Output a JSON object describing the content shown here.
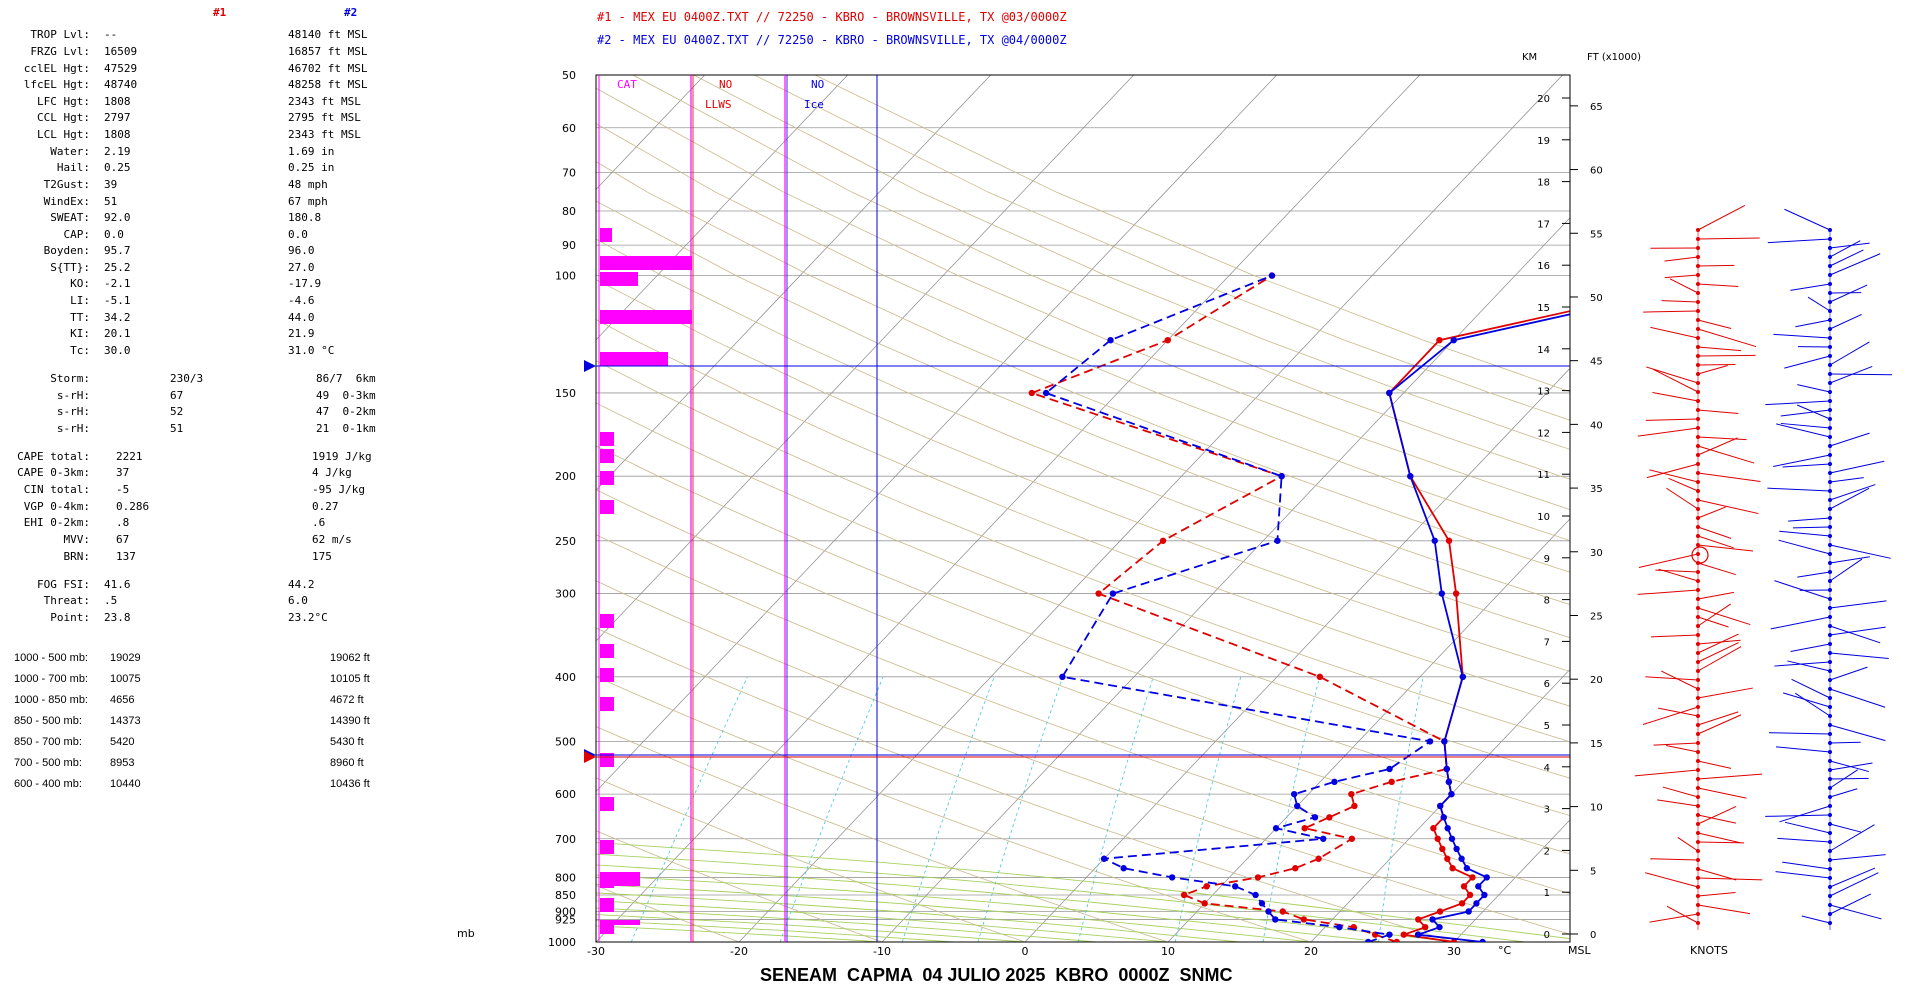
{
  "header": {
    "col1_label": "#1",
    "col2_label": "#2",
    "run1": "#1 - MEX EU 0400Z.TXT // 72250 - KBRO - BROWNSVILLE, TX   @03/0000Z",
    "run2": "#2 - MEX EU 0400Z.TXT // 72250 - KBRO - BROWNSVILLE, TX   @04/0000Z"
  },
  "params": [
    {
      "label": "TROP Lvl:",
      "v1": "--",
      "v2": "48140 ft MSL",
      "y": 38
    },
    {
      "label": "FRZG Lvl:",
      "v1": "16509",
      "v2": "16857 ft MSL",
      "y": 55
    },
    {
      "label": "cclEL Hgt:",
      "v1": "47529",
      "v2": "46702 ft MSL",
      "y": 72
    },
    {
      "label": "lfcEL Hgt:",
      "v1": "48740",
      "v2": "48258 ft MSL",
      "y": 88
    },
    {
      "label": "LFC Hgt:",
      "v1": "1808",
      "v2": "2343 ft MSL",
      "y": 105
    },
    {
      "label": "CCL Hgt:",
      "v1": "2797",
      "v2": "2795 ft MSL",
      "y": 121
    },
    {
      "label": "LCL Hgt:",
      "v1": "1808",
      "v2": "2343 ft MSL",
      "y": 138
    },
    {
      "label": "Water:",
      "v1": "2.19",
      "v2": "1.69 in",
      "y": 155
    },
    {
      "label": "Hail:",
      "v1": "0.25",
      "v2": "0.25 in",
      "y": 171
    },
    {
      "label": "T2Gust:",
      "v1": "39",
      "v2": "48 mph",
      "y": 188
    },
    {
      "label": "WindEx:",
      "v1": "51",
      "v2": "67 mph",
      "y": 205
    },
    {
      "label": "SWEAT:",
      "v1": "92.0",
      "v2": "180.8",
      "y": 221
    },
    {
      "label": "CAP:",
      "v1": "0.0",
      "v2": "0.0",
      "y": 238
    },
    {
      "label": "Boyden:",
      "v1": "95.7",
      "v2": "96.0",
      "y": 254
    },
    {
      "label": "S{TT}:",
      "v1": "25.2",
      "v2": "27.0",
      "y": 271
    },
    {
      "label": "KO:",
      "v1": "-2.1",
      "v2": "-17.9",
      "y": 287
    },
    {
      "label": "LI:",
      "v1": "-5.1",
      "v2": "-4.6",
      "y": 304
    },
    {
      "label": "TT:",
      "v1": "34.2",
      "v2": "44.0",
      "y": 321
    },
    {
      "label": "KI:",
      "v1": "20.1",
      "v2": "21.9",
      "y": 337
    },
    {
      "label": "Tc:",
      "v1": "30.0",
      "v2": "31.0 °C",
      "y": 354
    }
  ],
  "storm": [
    {
      "label": "Storm:",
      "v1": "230/3",
      "v2": "86/7  6km",
      "y": 382
    },
    {
      "label": "s-rH:",
      "v1": "67",
      "v2": "49  0-3km",
      "y": 399
    },
    {
      "label": "s-rH:",
      "v1": "52",
      "v2": "47  0-2km",
      "y": 415
    },
    {
      "label": "s-rH:",
      "v1": "51",
      "v2": "21  0-1km",
      "y": 432
    }
  ],
  "cape": [
    {
      "label": "CAPE total:",
      "v1": "2221",
      "v2": "1919 J/kg",
      "y": 460
    },
    {
      "label": "CAPE 0-3km:",
      "v1": "37",
      "v2": "4 J/kg",
      "y": 476
    },
    {
      "label": "CIN total:",
      "v1": "-5",
      "v2": "-95 J/kg",
      "y": 493
    },
    {
      "label": "VGP 0-4km:",
      "v1": "0.286",
      "v2": "0.27",
      "y": 510
    },
    {
      "label": "EHI 0-2km:",
      "v1": ".8",
      "v2": ".6",
      "y": 526
    },
    {
      "label": "MVV:",
      "v1": "67",
      "v2": "62 m/s",
      "y": 543
    },
    {
      "label": "BRN:",
      "v1": "137",
      "v2": "175",
      "y": 560
    }
  ],
  "fog": [
    {
      "label": "FOG FSI:",
      "v1": "41.6",
      "v2": "44.2",
      "y": 588
    },
    {
      "label": "Threat:",
      "v1": ".5",
      "v2": "6.0",
      "y": 604
    },
    {
      "label": "Point:",
      "v1": "23.8",
      "v2": "23.2°C",
      "y": 621
    }
  ],
  "thickness": [
    {
      "label": "1000 - 500 mb:",
      "v1": "19029",
      "v2": "19062 ft",
      "y": 662
    },
    {
      "label": "1000 - 700 mb:",
      "v1": "10075",
      "v2": "10105 ft",
      "y": 683
    },
    {
      "label": "1000 - 850 mb:",
      "v1": "4656",
      "v2": "4672 ft",
      "y": 704
    },
    {
      "label": "850 - 500 mb:",
      "v1": "14373",
      "v2": "14390 ft",
      "y": 725
    },
    {
      "label": "850 - 700 mb:",
      "v1": "5420",
      "v2": "5430 ft",
      "y": 746
    },
    {
      "label": "700 - 500 mb:",
      "v1": "8953",
      "v2": "8960 ft",
      "y": 767
    },
    {
      "label": "600 - 400 mb:",
      "v1": "10440",
      "v2": "10436 ft",
      "y": 788
    }
  ],
  "chart_labels": {
    "cat": "CAT",
    "no_red": "NO",
    "llws": "LLWS",
    "no_blue": "NO",
    "ice": "Ice",
    "km": "KM",
    "ft": "FT (x1000)",
    "mb": "mb",
    "degc": "°C",
    "msl": "MSL",
    "knots": "KNOTS"
  },
  "footer": "SENEAM  CAPMA  04 JULIO 2025  KBRO  0000Z  SNMC",
  "colors": {
    "run1": "#e00000",
    "run2": "#0000e0",
    "cat": "#ff00ff"
  },
  "chart_data": {
    "type": "line",
    "title": "",
    "xlabel": "°C",
    "ylabel": "mb",
    "xlim": [
      -30,
      40
    ],
    "ylim": [
      1000,
      50
    ],
    "x_ticks": [
      -30,
      -20,
      -10,
      0,
      10,
      20,
      30
    ],
    "pressure_ticks": [
      50,
      60,
      70,
      80,
      90,
      100,
      150,
      200,
      250,
      300,
      400,
      500,
      600,
      700,
      800,
      850,
      900,
      925,
      1000
    ],
    "km_ticks": [
      0,
      1,
      2,
      3,
      4,
      5,
      6,
      7,
      8,
      9,
      10,
      11,
      12,
      13,
      14,
      15,
      16,
      17,
      18,
      19,
      20
    ],
    "ft_ticks": [
      0,
      5,
      10,
      15,
      20,
      25,
      30,
      35,
      40,
      45,
      50,
      55,
      60,
      65
    ],
    "series": [
      {
        "name": "#1",
        "variable": "temperature",
        "color": "#e00000",
        "dashed": false,
        "points": [
          [
            30,
            1000
          ],
          [
            26,
            975
          ],
          [
            27,
            950
          ],
          [
            26,
            925
          ],
          [
            27,
            900
          ],
          [
            28,
            875
          ],
          [
            28,
            850
          ],
          [
            27,
            825
          ],
          [
            27,
            800
          ],
          [
            25,
            775
          ],
          [
            24,
            750
          ],
          [
            23,
            725
          ],
          [
            22,
            700
          ],
          [
            21,
            675
          ],
          [
            21,
            650
          ],
          [
            20,
            625
          ],
          [
            20,
            600
          ],
          [
            19,
            575
          ],
          [
            18,
            550
          ],
          [
            16,
            500
          ],
          [
            13,
            400
          ],
          [
            7,
            300
          ],
          [
            3,
            250
          ],
          [
            -4,
            200
          ],
          [
            -11,
            150
          ],
          [
            -11,
            125
          ],
          [
            5,
            100
          ]
        ]
      },
      {
        "name": "#1",
        "variable": "dewpoint",
        "color": "#e00000",
        "dashed": true,
        "points": [
          [
            26,
            1000
          ],
          [
            24,
            975
          ],
          [
            22,
            950
          ],
          [
            18,
            925
          ],
          [
            16,
            900
          ],
          [
            10,
            875
          ],
          [
            8,
            850
          ],
          [
            9,
            825
          ],
          [
            12,
            800
          ],
          [
            14,
            775
          ],
          [
            15,
            750
          ],
          [
            16,
            700
          ],
          [
            12,
            675
          ],
          [
            13,
            650
          ],
          [
            14,
            625
          ],
          [
            13,
            600
          ],
          [
            15,
            575
          ],
          [
            18,
            550
          ],
          [
            16,
            500
          ],
          [
            3,
            400
          ],
          [
            -18,
            300
          ],
          [
            -17,
            250
          ],
          [
            -13,
            200
          ],
          [
            -36,
            150
          ],
          [
            -30,
            125
          ],
          [
            -27,
            100
          ]
        ]
      },
      {
        "name": "#2",
        "variable": "temperature",
        "color": "#0000e0",
        "dashed": false,
        "points": [
          [
            32,
            1000
          ],
          [
            27,
            975
          ],
          [
            28,
            950
          ],
          [
            27,
            925
          ],
          [
            29,
            900
          ],
          [
            29,
            875
          ],
          [
            29,
            850
          ],
          [
            28,
            825
          ],
          [
            28,
            800
          ],
          [
            26,
            775
          ],
          [
            25,
            750
          ],
          [
            24,
            725
          ],
          [
            23,
            700
          ],
          [
            22,
            675
          ],
          [
            21,
            650
          ],
          [
            20,
            625
          ],
          [
            20,
            600
          ],
          [
            19,
            575
          ],
          [
            18,
            550
          ],
          [
            16,
            500
          ],
          [
            13,
            400
          ],
          [
            6,
            300
          ],
          [
            2,
            250
          ],
          [
            -4,
            200
          ],
          [
            -11,
            150
          ],
          [
            -10,
            125
          ],
          [
            6,
            100
          ]
        ]
      },
      {
        "name": "#2",
        "variable": "dewpoint",
        "color": "#0000e0",
        "dashed": true,
        "points": [
          [
            24,
            1000
          ],
          [
            25,
            975
          ],
          [
            21,
            950
          ],
          [
            16,
            925
          ],
          [
            15,
            900
          ],
          [
            14,
            875
          ],
          [
            13,
            850
          ],
          [
            11,
            825
          ],
          [
            6,
            800
          ],
          [
            2,
            775
          ],
          [
            0,
            750
          ],
          [
            14,
            700
          ],
          [
            10,
            675
          ],
          [
            12,
            650
          ],
          [
            10,
            625
          ],
          [
            9,
            600
          ],
          [
            11,
            575
          ],
          [
            14,
            550
          ],
          [
            15,
            500
          ],
          [
            -15,
            400
          ],
          [
            -17,
            300
          ],
          [
            -9,
            250
          ],
          [
            -13,
            200
          ],
          [
            -35,
            150
          ],
          [
            -34,
            125
          ],
          [
            -27,
            100
          ]
        ]
      }
    ]
  }
}
